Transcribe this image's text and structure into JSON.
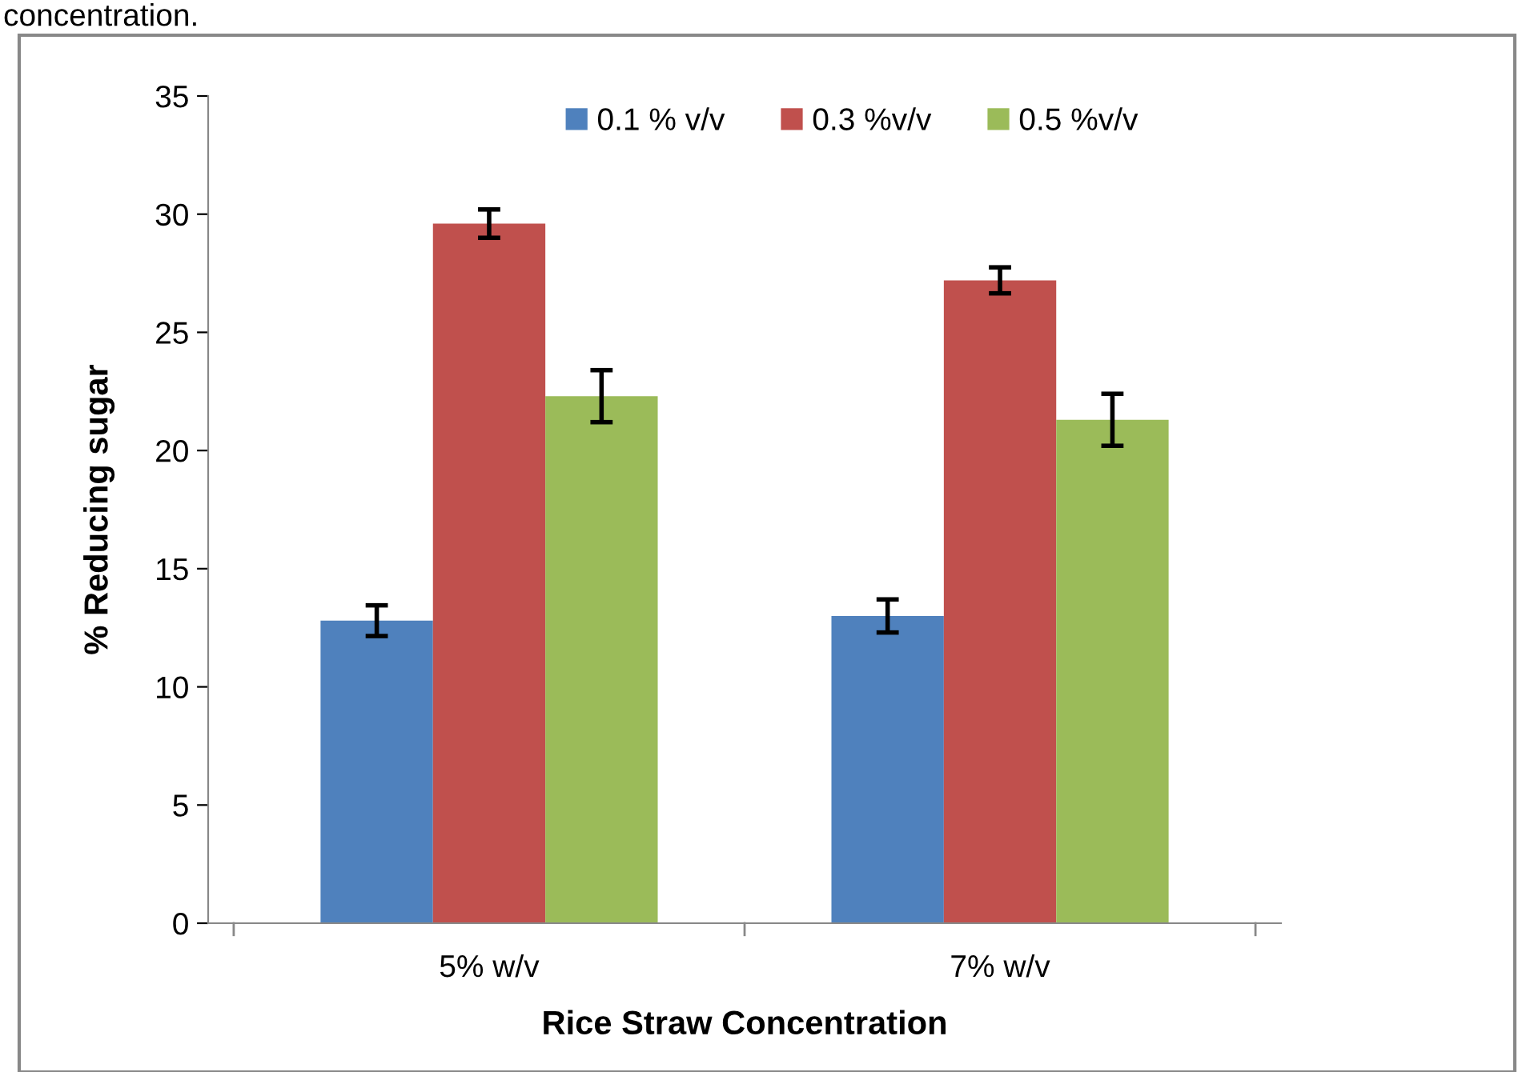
{
  "chart_data": {
    "type": "bar",
    "xlabel": "Rice Straw Concentration",
    "ylabel": "% Reducing sugar",
    "categories": [
      "5% w/v",
      "7% w/v"
    ],
    "series": [
      {
        "name": "0.1 % v/v",
        "color": "#4f81bd",
        "values": [
          12.8,
          13.0
        ],
        "errors": [
          0.65,
          0.7
        ]
      },
      {
        "name": "0.3 %v/v",
        "color": "#c0504d",
        "values": [
          29.6,
          27.2
        ],
        "errors": [
          0.6,
          0.55
        ]
      },
      {
        "name": "0.5 %v/v",
        "color": "#9bbb59",
        "values": [
          22.3,
          21.3
        ],
        "errors": [
          1.1,
          1.1
        ]
      }
    ],
    "ylim": [
      0,
      35
    ],
    "yticks": [
      0,
      5,
      10,
      15,
      20,
      25,
      30,
      35
    ],
    "legend": "top",
    "grid": false,
    "annotations": [
      "concentration."
    ]
  }
}
